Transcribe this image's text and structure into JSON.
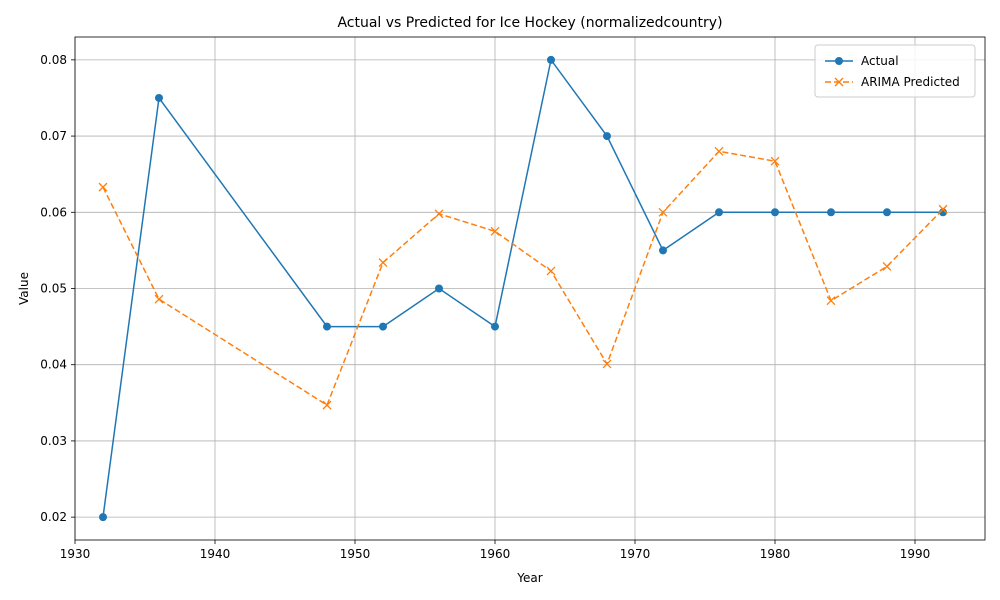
{
  "chart_data": {
    "type": "line",
    "title": "Actual vs Predicted for Ice Hockey (normalizedcountry)",
    "xlabel": "Year",
    "ylabel": "Value",
    "xlim": [
      1930,
      1995
    ],
    "ylim": [
      0.017,
      0.083
    ],
    "xticks": [
      1930,
      1940,
      1950,
      1960,
      1970,
      1980,
      1990
    ],
    "yticks": [
      0.02,
      0.03,
      0.04,
      0.05,
      0.06,
      0.07,
      0.08
    ],
    "grid": true,
    "legend_position": "top-right",
    "series": [
      {
        "name": "Actual",
        "color": "#1f77b4",
        "marker": "circle",
        "line_style": "solid",
        "x": [
          1932,
          1936,
          1948,
          1952,
          1956,
          1960,
          1964,
          1968,
          1972,
          1976,
          1980,
          1984,
          1988,
          1992
        ],
        "values": [
          0.02,
          0.075,
          0.045,
          0.045,
          0.05,
          0.045,
          0.08,
          0.07,
          0.055,
          0.06,
          0.06,
          0.06,
          0.06,
          0.06
        ]
      },
      {
        "name": "ARIMA Predicted",
        "color": "#ff7f0e",
        "marker": "x",
        "line_style": "dashed",
        "x": [
          1932,
          1936,
          1948,
          1952,
          1956,
          1960,
          1964,
          1968,
          1972,
          1976,
          1980,
          1984,
          1988,
          1992
        ],
        "values": [
          0.0633,
          0.0486,
          0.0347,
          0.0534,
          0.0598,
          0.0575,
          0.0523,
          0.0401,
          0.06,
          0.068,
          0.0667,
          0.0484,
          0.0529,
          0.0604
        ]
      }
    ]
  }
}
